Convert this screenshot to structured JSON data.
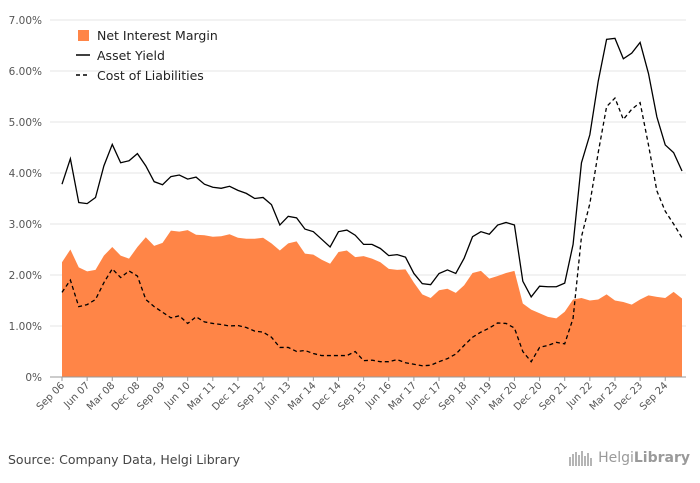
{
  "colors": {
    "nim_fill": "#FF8547",
    "asset_line": "#000000",
    "cost_line": "#000000",
    "gridline": "#e6e6e6",
    "axis_text": "#555555"
  },
  "source_text": "Source: Company Data, Helgi Library",
  "brand": {
    "prefix": "Helgi",
    "suffix": "Library",
    "icon": "helgi-library-logo-icon"
  },
  "chart_data": {
    "type": "area",
    "ylim": [
      0,
      7
    ],
    "y_ticks": [
      "0%",
      "1.00%",
      "2.00%",
      "3.00%",
      "4.00%",
      "5.00%",
      "6.00%",
      "7.00%"
    ],
    "x_ticks": [
      "Sep 06",
      "Jun 07",
      "Mar 08",
      "Dec 08",
      "Sep 09",
      "Jun 10",
      "Mar 11",
      "Dec 11",
      "Sep 12",
      "Jun 13",
      "Mar 14",
      "Dec 14",
      "Sep 15",
      "Jun 16",
      "Mar 17",
      "Dec 17",
      "Sep 18",
      "Jun 19",
      "Mar 20",
      "Dec 20",
      "Sep 21",
      "Jun 22",
      "Mar 23",
      "Dec 23",
      "Sep 24"
    ],
    "x_start": "Sep 06",
    "x_step_months": 3,
    "legend": {
      "position": "top-left",
      "items": [
        {
          "label": "Net Interest Margin",
          "style": "area"
        },
        {
          "label": "Asset Yield",
          "style": "solid"
        },
        {
          "label": "Cost of Liabilities",
          "style": "dashed"
        }
      ]
    },
    "series": [
      {
        "name": "Net Interest Margin",
        "type": "area",
        "values": [
          2.25,
          2.5,
          2.15,
          2.07,
          2.1,
          2.38,
          2.55,
          2.38,
          2.32,
          2.55,
          2.74,
          2.57,
          2.63,
          2.87,
          2.85,
          2.88,
          2.79,
          2.78,
          2.75,
          2.76,
          2.8,
          2.73,
          2.71,
          2.71,
          2.73,
          2.62,
          2.48,
          2.62,
          2.66,
          2.42,
          2.4,
          2.3,
          2.22,
          2.45,
          2.48,
          2.35,
          2.37,
          2.32,
          2.25,
          2.12,
          2.1,
          2.11,
          1.85,
          1.62,
          1.55,
          1.7,
          1.73,
          1.65,
          1.8,
          2.04,
          2.08,
          1.93,
          1.98,
          2.04,
          2.08,
          1.44,
          1.32,
          1.25,
          1.18,
          1.15,
          1.28,
          1.52,
          1.55,
          1.5,
          1.52,
          1.62,
          1.5,
          1.47,
          1.42,
          1.52,
          1.6,
          1.57,
          1.55,
          1.67,
          1.54
        ]
      },
      {
        "name": "Asset Yield",
        "type": "line",
        "values": [
          3.78,
          4.28,
          3.42,
          3.4,
          3.52,
          4.14,
          4.56,
          4.2,
          4.24,
          4.38,
          4.14,
          3.83,
          3.77,
          3.93,
          3.96,
          3.88,
          3.92,
          3.78,
          3.72,
          3.7,
          3.74,
          3.66,
          3.6,
          3.5,
          3.52,
          3.38,
          2.98,
          3.15,
          3.12,
          2.9,
          2.85,
          2.7,
          2.55,
          2.85,
          2.88,
          2.78,
          2.6,
          2.6,
          2.52,
          2.38,
          2.4,
          2.35,
          2.03,
          1.83,
          1.81,
          2.03,
          2.1,
          2.03,
          2.33,
          2.75,
          2.85,
          2.8,
          2.98,
          3.03,
          2.98,
          1.88,
          1.57,
          1.78,
          1.77,
          1.77,
          1.84,
          2.6,
          4.2,
          4.75,
          5.8,
          6.62,
          6.64,
          6.24,
          6.35,
          6.56,
          5.95,
          5.1,
          4.55,
          4.4,
          4.04
        ]
      },
      {
        "name": "Cost of Liabilities",
        "type": "line",
        "values": [
          1.66,
          1.9,
          1.38,
          1.42,
          1.52,
          1.85,
          2.12,
          1.95,
          2.08,
          1.98,
          1.52,
          1.38,
          1.27,
          1.16,
          1.2,
          1.05,
          1.18,
          1.08,
          1.05,
          1.03,
          1.0,
          1.01,
          0.97,
          0.9,
          0.88,
          0.78,
          0.58,
          0.58,
          0.5,
          0.52,
          0.46,
          0.42,
          0.42,
          0.42,
          0.42,
          0.5,
          0.32,
          0.33,
          0.3,
          0.3,
          0.34,
          0.28,
          0.25,
          0.22,
          0.23,
          0.3,
          0.36,
          0.45,
          0.62,
          0.78,
          0.88,
          0.96,
          1.06,
          1.05,
          0.96,
          0.5,
          0.3,
          0.58,
          0.62,
          0.68,
          0.65,
          1.15,
          2.75,
          3.4,
          4.4,
          5.3,
          5.47,
          5.05,
          5.25,
          5.38,
          4.55,
          3.65,
          3.25,
          3.0,
          2.73
        ]
      }
    ]
  }
}
